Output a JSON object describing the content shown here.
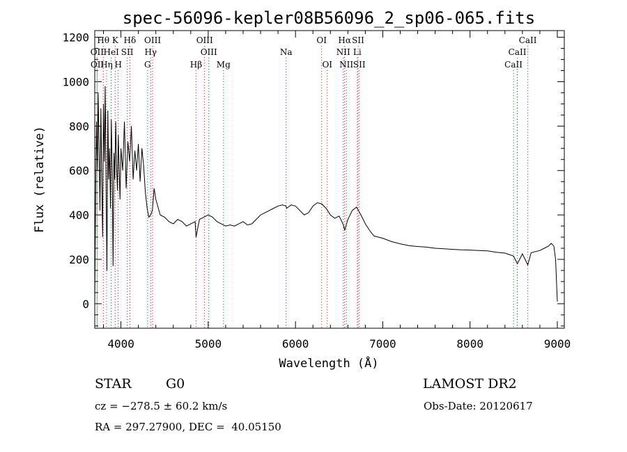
{
  "chart_data": {
    "type": "line",
    "title": "spec-56096-kepler08B56096_2_sp06-065.fits",
    "xlabel": "Wavelength (Å)",
    "ylabel": "Flux (relative)",
    "xlim": [
      3700,
      9080
    ],
    "ylim": [
      -110,
      1230
    ],
    "xticks": [
      4000,
      5000,
      6000,
      7000,
      8000,
      9000
    ],
    "yticks": [
      0,
      200,
      400,
      600,
      800,
      1000,
      1200
    ],
    "grid": false,
    "line_color": "#000000",
    "marker_color": "#ff0000",
    "series": [
      {
        "values_x": [
          3700,
          3710,
          3720,
          3730,
          3740,
          3750,
          3760,
          3770,
          3780,
          3790,
          3800,
          3810,
          3820,
          3830,
          3840,
          3850,
          3860,
          3870,
          3880,
          3890,
          3900,
          3910,
          3920,
          3930,
          3940,
          3950,
          3960,
          3970,
          3980,
          3990,
          4000,
          4020,
          4040,
          4060,
          4080,
          4100,
          4120,
          4140,
          4160,
          4180,
          4200,
          4220,
          4240,
          4260,
          4280,
          4300,
          4320,
          4340,
          4360,
          4380,
          4400,
          4450,
          4500,
          4550,
          4600,
          4650,
          4700,
          4750,
          4800,
          4850,
          4861,
          4900,
          4950,
          5000,
          5050,
          5100,
          5150,
          5200,
          5250,
          5300,
          5350,
          5400,
          5450,
          5500,
          5550,
          5600,
          5650,
          5700,
          5750,
          5800,
          5850,
          5890,
          5900,
          5950,
          6000,
          6050,
          6100,
          6150,
          6200,
          6250,
          6300,
          6350,
          6400,
          6450,
          6500,
          6550,
          6563,
          6600,
          6650,
          6700,
          6750,
          6800,
          6850,
          6900,
          6950,
          7000,
          7100,
          7200,
          7300,
          7400,
          7500,
          7600,
          7700,
          7800,
          7900,
          8000,
          8100,
          8200,
          8300,
          8400,
          8498,
          8542,
          8600,
          8662,
          8700,
          8750,
          8800,
          8850,
          8900,
          8930,
          8960,
          8980,
          9000
        ],
        "values_y": [
          0,
          500,
          820,
          600,
          950,
          680,
          420,
          880,
          560,
          300,
          900,
          640,
          980,
          520,
          150,
          870,
          560,
          700,
          430,
          830,
          600,
          170,
          680,
          560,
          820,
          620,
          510,
          760,
          600,
          470,
          700,
          600,
          820,
          520,
          730,
          640,
          800,
          560,
          690,
          600,
          720,
          550,
          700,
          620,
          500,
          430,
          390,
          400,
          420,
          520,
          470,
          400,
          390,
          370,
          360,
          380,
          370,
          350,
          360,
          370,
          300,
          380,
          390,
          400,
          390,
          370,
          360,
          350,
          355,
          350,
          360,
          370,
          355,
          360,
          380,
          400,
          410,
          420,
          430,
          440,
          445,
          440,
          430,
          445,
          440,
          420,
          400,
          410,
          440,
          455,
          450,
          430,
          400,
          385,
          395,
          355,
          330,
          380,
          420,
          435,
          400,
          360,
          330,
          305,
          300,
          295,
          280,
          270,
          262,
          258,
          255,
          250,
          248,
          245,
          243,
          242,
          240,
          238,
          232,
          228,
          215,
          180,
          225,
          175,
          230,
          235,
          240,
          250,
          260,
          272,
          260,
          200,
          10
        ]
      }
    ],
    "lines": {
      "upper": [
        {
          "label": "Hθ",
          "x": 3798
        },
        {
          "label": "K",
          "x": 3934
        },
        {
          "label": "Hδ",
          "x": 4102
        },
        {
          "label": "OIII",
          "x": 4363
        },
        {
          "label": "OIII",
          "x": 4959
        },
        {
          "label": "OI",
          "x": 6300
        },
        {
          "label": "Hα",
          "x": 6563
        },
        {
          "label": "SII",
          "x": 6717
        },
        {
          "label": "CaII",
          "x": 8662
        }
      ],
      "middle": [
        {
          "label": "OII",
          "x": 3727
        },
        {
          "label": "HeI",
          "x": 3889
        },
        {
          "label": "SII",
          "x": 4072
        },
        {
          "label": "Hγ",
          "x": 4341
        },
        {
          "label": "OIII",
          "x": 5007
        },
        {
          "label": "Na",
          "x": 5893
        },
        {
          "label": "NII",
          "x": 6548
        },
        {
          "label": "Li",
          "x": 6708
        },
        {
          "label": "CaII",
          "x": 8542
        }
      ],
      "lower": [
        {
          "label": "OII",
          "x": 3729
        },
        {
          "label": "Hη",
          "x": 3835
        },
        {
          "label": "H",
          "x": 3969
        },
        {
          "label": "G",
          "x": 4305
        },
        {
          "label": "Hβ",
          "x": 4861
        },
        {
          "label": "Mg",
          "x": 5175
        },
        {
          "label": "OI",
          "x": 6364
        },
        {
          "label": "NII",
          "x": 6583
        },
        {
          "label": "SII",
          "x": 6731
        },
        {
          "label": "CaII",
          "x": 8498
        }
      ]
    }
  },
  "info": {
    "class": "STAR",
    "subclass": "G0",
    "survey": "LAMOST DR2",
    "cz": "cz = −278.5 ± 60.2 km/s",
    "obs_date": "Obs-Date: 20120617",
    "coords": "RA = 297.27900, DEC =  40.05150"
  }
}
